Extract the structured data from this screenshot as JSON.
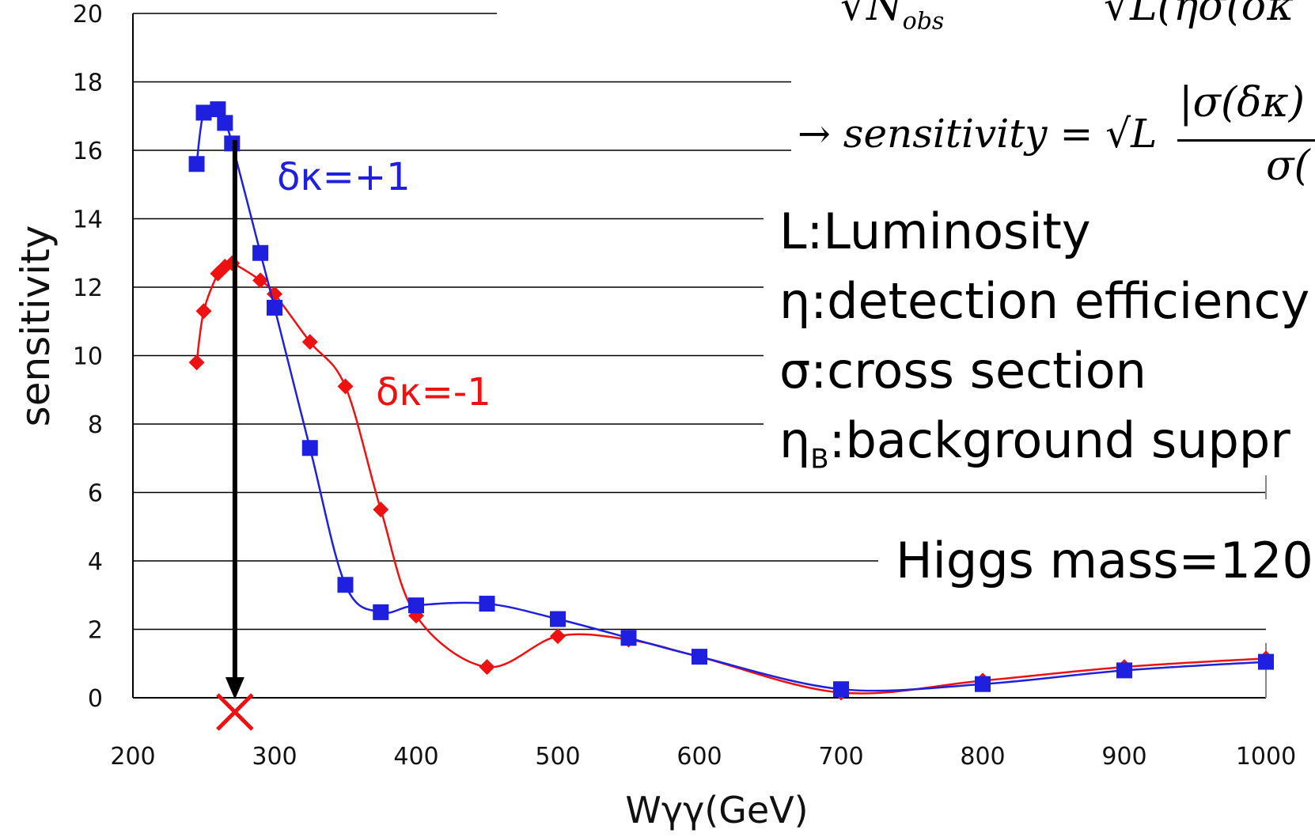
{
  "chart_data": {
    "type": "line",
    "xlabel": "Wγγ(GeV)",
    "ylabel": "sensitivity",
    "xlim": [
      200,
      1000
    ],
    "ylim": [
      0,
      20
    ],
    "xticks": [
      200,
      300,
      400,
      500,
      600,
      700,
      800,
      900,
      1000
    ],
    "yticks": [
      0,
      2,
      4,
      6,
      8,
      10,
      12,
      14,
      16,
      18,
      20
    ],
    "grid": "horizontal",
    "series": [
      {
        "name": "δκ=+1",
        "color": "#1f1fe0",
        "marker": "square",
        "x": [
          245,
          250,
          260,
          265,
          270,
          290,
          300,
          325,
          350,
          375,
          400,
          450,
          500,
          550,
          600,
          700,
          800,
          900,
          1000
        ],
        "y": [
          15.6,
          17.1,
          17.2,
          16.8,
          16.2,
          13.0,
          11.4,
          7.3,
          3.3,
          2.5,
          2.7,
          2.75,
          2.3,
          1.75,
          1.2,
          0.25,
          0.4,
          0.8,
          1.05
        ]
      },
      {
        "name": "δκ=-1",
        "color": "#ee1111",
        "marker": "diamond",
        "x": [
          245,
          250,
          260,
          265,
          270,
          290,
          300,
          325,
          350,
          375,
          400,
          450,
          500,
          550,
          600,
          700,
          800,
          900,
          1000
        ],
        "y": [
          9.8,
          11.3,
          12.4,
          12.6,
          12.7,
          12.2,
          11.8,
          10.4,
          9.1,
          5.5,
          2.4,
          0.9,
          1.8,
          1.7,
          1.2,
          0.15,
          0.5,
          0.9,
          1.15
        ]
      }
    ],
    "annotations": {
      "arrow": {
        "x": 272,
        "from_y": 16.3,
        "to_y": 0
      },
      "cross": {
        "x": 272,
        "y": 0
      }
    }
  },
  "formulas": {
    "top_left": "√N",
    "top_left_sub": "obs",
    "top_right": "√L(ησ(δκ",
    "main": "→ sensitivity = √L",
    "frac_num": "|σ(δκ)",
    "frac_den": "σ("
  },
  "legend": {
    "luminosity": "L:Luminosity",
    "efficiency": "η:detection efficiency",
    "cross_section": "σ:cross section",
    "bg_prefix": "η",
    "bg_sub": "B",
    "bg_rest": ":background suppr"
  },
  "higgs_note": "Higgs mass=120"
}
